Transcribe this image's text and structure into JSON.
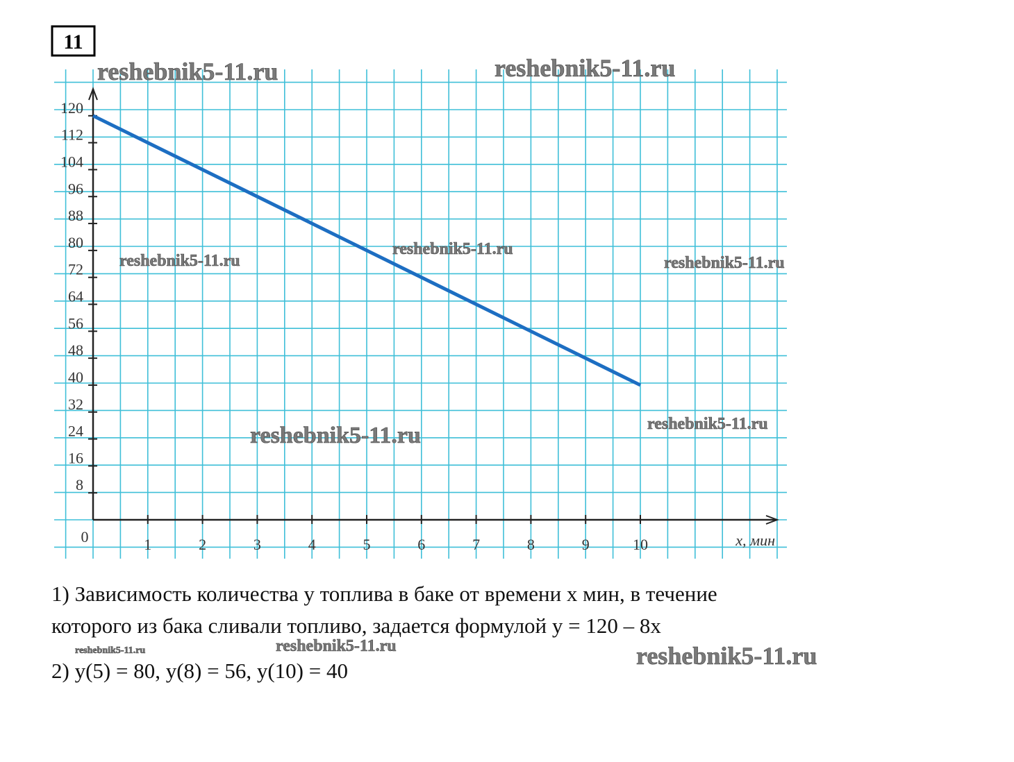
{
  "problem_number": "11",
  "chart_data": {
    "type": "line",
    "x_label": "x, мин",
    "origin_label": "0",
    "x": [
      0,
      10
    ],
    "values": [
      120,
      40
    ],
    "color": "#1d6ec2",
    "xlim": [
      0,
      12.5
    ],
    "ylim": [
      0,
      128
    ],
    "xticks": [
      1,
      2,
      3,
      4,
      5,
      6,
      7,
      8,
      9,
      10
    ],
    "yticks": [
      8,
      16,
      24,
      32,
      40,
      48,
      56,
      64,
      72,
      80,
      88,
      96,
      104,
      112,
      120
    ]
  },
  "text": {
    "lines": [
      "1) Зависимость количества y топлива в баке от времени x мин, в течение",
      "которого из бака сливали топливо, задается формулой y = 120 – 8x",
      "2) y(5) = 80, y(8) = 56, y(10) = 40"
    ]
  },
  "watermarks": [
    "reshebnik5-11.ru",
    "reshebnik5-11.ru",
    "reshebnik5-11.ru",
    "reshebnik5-11.ru",
    "reshebnik5-11.ru",
    "reshebnik5-11.ru",
    "reshebnik5-11.ru",
    "reshebnik5-11.ru",
    "reshebnik5-11.ru",
    "reshebnik5-11.ru"
  ]
}
